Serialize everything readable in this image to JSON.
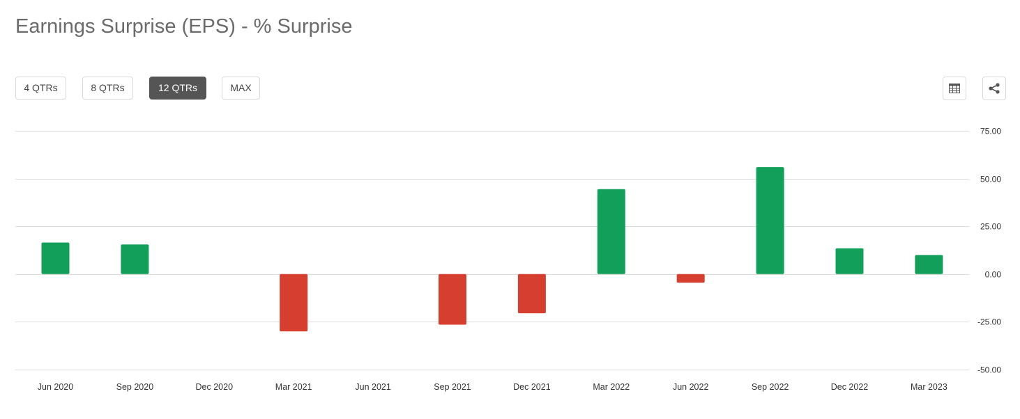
{
  "header": {
    "title": "Earnings Surprise (EPS) - % Surprise"
  },
  "range_buttons": [
    {
      "label": "4 QTRs",
      "active": false
    },
    {
      "label": "8 QTRs",
      "active": false
    },
    {
      "label": "12 QTRs",
      "active": true
    },
    {
      "label": "MAX",
      "active": false
    }
  ],
  "toolbar": {
    "table_icon": "table-icon",
    "share_icon": "share-icon"
  },
  "colors": {
    "positive": "#129f5a",
    "negative": "#d63e2f",
    "grid": "#dcdcdc",
    "active_button": "#555555"
  },
  "chart_data": {
    "type": "bar",
    "categories": [
      "Jun 2020",
      "Sep 2020",
      "Dec 2020",
      "Mar 2021",
      "Jun 2021",
      "Sep 2021",
      "Dec 2021",
      "Mar 2022",
      "Jun 2022",
      "Sep 2022",
      "Dec 2022",
      "Mar 2023"
    ],
    "values": [
      16.5,
      15.5,
      0,
      -30,
      0,
      -26.5,
      -20.5,
      44.5,
      -4.5,
      56,
      13.5,
      10
    ],
    "yticks": [
      "75.00",
      "50.00",
      "25.00",
      "0.00",
      "-25.00",
      "-50.00"
    ],
    "ytick_values": [
      75,
      50,
      25,
      0,
      -25,
      -50
    ],
    "ylim": [
      -50,
      75
    ],
    "grid": true,
    "title": "Earnings Surprise (EPS) - % Surprise",
    "xlabel": "",
    "ylabel": ""
  }
}
